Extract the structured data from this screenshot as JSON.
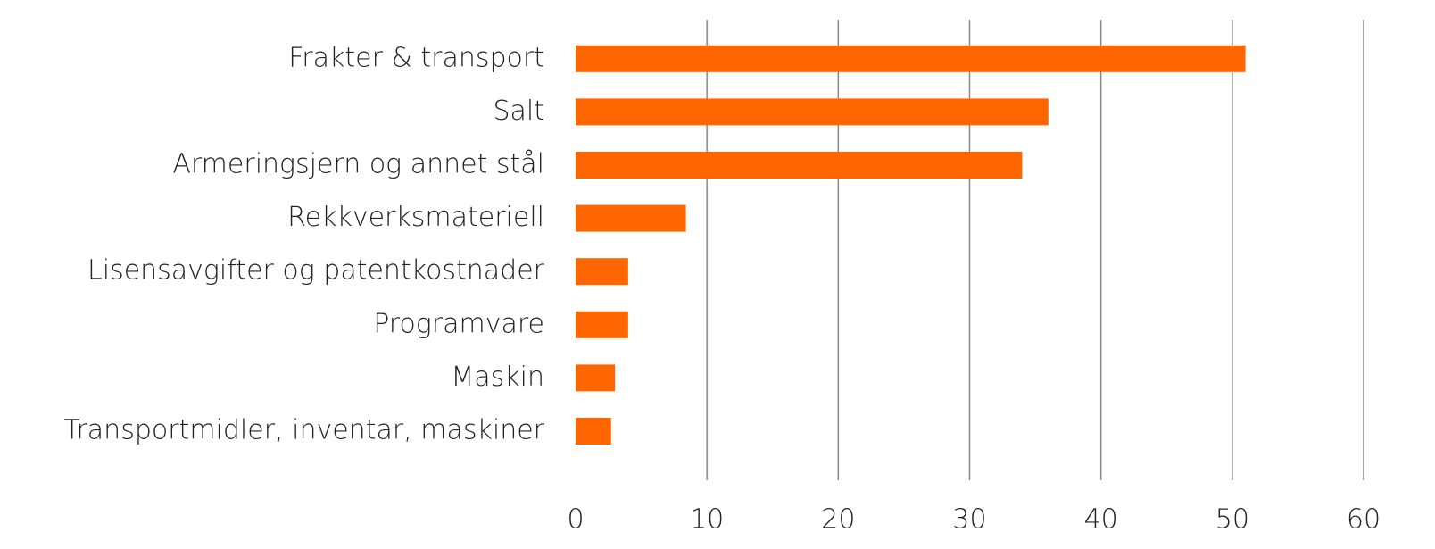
{
  "chart_data": {
    "type": "barh",
    "categories": [
      "Frakter & transport",
      "Salt",
      "Armeringsjern og annet stål",
      "Rekkverksmateriell",
      "Lisensavgifter og patentkostnader",
      "Programvare",
      "Maskin",
      "Transportmidler, inventar, maskiner"
    ],
    "values": [
      51,
      36,
      34,
      8.4,
      4,
      4,
      3,
      2.7
    ],
    "color": "#ff6600",
    "xlim": [
      0,
      60
    ],
    "xticks": [
      0,
      10,
      20,
      30,
      40,
      50,
      60
    ],
    "grid": true
  }
}
